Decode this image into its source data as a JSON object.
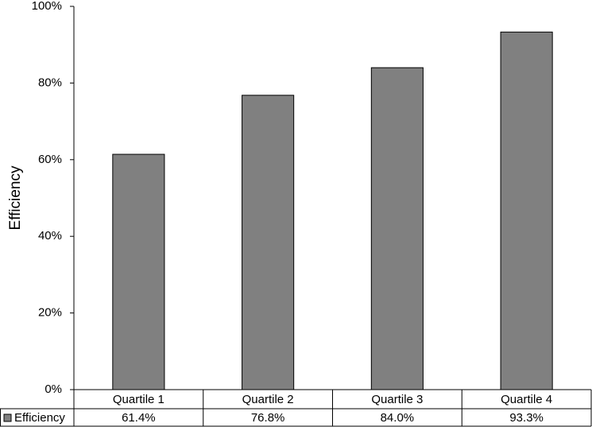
{
  "chart_data": {
    "type": "bar",
    "y_label": "Efficiency",
    "categories": [
      "Quartile 1",
      "Quartile 2",
      "Quartile 3",
      "Quartile 4"
    ],
    "series": [
      {
        "name": "Efficiency",
        "color": "#808080",
        "values": [
          61.4,
          76.8,
          84.0,
          93.3
        ],
        "value_labels": [
          "61.4%",
          "76.8%",
          "84.0%",
          "93.3%"
        ]
      }
    ],
    "ylim": [
      0,
      100
    ],
    "yticks": [
      {
        "value": 0,
        "label": "0%"
      },
      {
        "value": 20,
        "label": "20%"
      },
      {
        "value": 40,
        "label": "40%"
      },
      {
        "value": 60,
        "label": "60%"
      },
      {
        "value": 80,
        "label": "80%"
      },
      {
        "value": 100,
        "label": "100%"
      }
    ],
    "grid": false
  }
}
